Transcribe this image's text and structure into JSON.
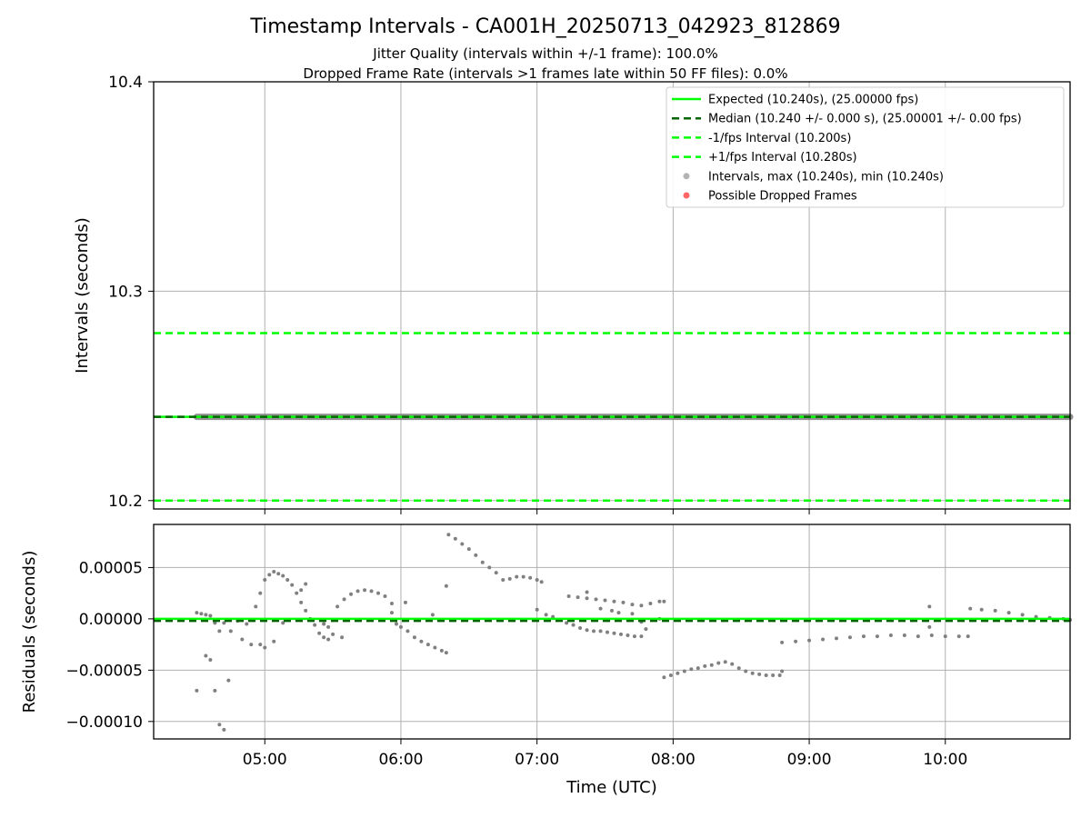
{
  "title": "Timestamp Intervals - CA001H_20250713_042923_812869",
  "subtitle_lines": [
    "Jitter Quality (intervals within +/-1 frame): 100.0%",
    "Dropped Frame Rate (intervals >1 frames late within 50 FF files): 0.0%"
  ],
  "colors": {
    "expected": "#00ff00",
    "median": "#006400",
    "bound": "#00ff00",
    "points": "#808080",
    "dropped": "#ff0000",
    "grid": "#b0b0b0"
  },
  "chart_data": [
    {
      "type": "scatter",
      "ylabel": "Intervals (seconds)",
      "ylim": [
        10.196,
        10.4
      ],
      "y_ticks": [
        10.2,
        10.3,
        10.4
      ],
      "y_tick_labels": [
        "10.2",
        "10.3",
        "10.4"
      ],
      "xlim": [
        "04:11",
        "10:55"
      ],
      "grid": true,
      "legend_position": "top-right",
      "legend": [
        {
          "label": "Expected (10.240s), (25.00000 fps)",
          "style": "solid-line",
          "color": "#00ff00"
        },
        {
          "label": "Median (10.240 +/- 0.000 s), (25.00001 +/- 0.00 fps)",
          "style": "dashed-line",
          "color": "#006400"
        },
        {
          "label": "-1/fps Interval (10.200s)",
          "style": "dashed-line",
          "color": "#00ff00"
        },
        {
          "label": "+1/fps Interval (10.280s)",
          "style": "dashed-line",
          "color": "#00ff00"
        },
        {
          "label": "Intervals, max (10.240s), min (10.240s)",
          "style": "marker",
          "color": "#808080"
        },
        {
          "label": "Possible Dropped Frames",
          "style": "marker",
          "color": "#ff0000"
        }
      ],
      "reference_lines": [
        {
          "name": "expected",
          "y": 10.24
        },
        {
          "name": "median",
          "y": 10.24
        },
        {
          "name": "minus_1_fps",
          "y": 10.2
        },
        {
          "name": "plus_1_fps",
          "y": 10.28
        }
      ],
      "interval_band": {
        "x_start": "04:30",
        "x_end": "10:55",
        "y": 10.24
      }
    },
    {
      "type": "scatter",
      "xlabel": "Time (UTC)",
      "ylabel": "Residuals (seconds)",
      "ylim": [
        -0.000117,
        9.2e-05
      ],
      "y_ticks": [
        5e-05,
        0.0,
        -5e-05,
        -0.0001
      ],
      "y_tick_labels": [
        "0.00005",
        "0.00000",
        "−0.00005",
        "−0.00010"
      ],
      "x_ticks": [
        "05:00",
        "06:00",
        "07:00",
        "08:00",
        "09:00",
        "10:00"
      ],
      "xlim": [
        "04:11",
        "10:55"
      ],
      "grid": true,
      "reference_lines": [
        {
          "name": "expected",
          "y": 0.0
        },
        {
          "name": "median",
          "y": -2e-06
        }
      ],
      "series": [
        {
          "points": [
            [
              "04:30",
              6e-06
            ],
            [
              "04:32",
              5e-06
            ],
            [
              "04:34",
              4e-06
            ],
            [
              "04:36",
              3e-06
            ],
            [
              "04:38",
              -4e-06
            ],
            [
              "04:40",
              -1.2e-05
            ],
            [
              "04:42",
              -4e-06
            ],
            [
              "04:45",
              -1.2e-05
            ],
            [
              "04:48",
              -2e-06
            ],
            [
              "04:50",
              -2e-05
            ],
            [
              "04:52",
              -5e-06
            ],
            [
              "04:54",
              -2.5e-05
            ],
            [
              "04:56",
              1.2e-05
            ],
            [
              "04:58",
              2.5e-05
            ],
            [
              "05:00",
              3.8e-05
            ],
            [
              "05:02",
              4.3e-05
            ],
            [
              "05:04",
              4.6e-05
            ],
            [
              "05:06",
              4.4e-05
            ],
            [
              "05:08",
              4.2e-05
            ],
            [
              "05:10",
              3.8e-05
            ],
            [
              "05:12",
              3.3e-05
            ],
            [
              "05:14",
              2.5e-05
            ],
            [
              "05:16",
              1.6e-05
            ],
            [
              "05:18",
              8e-06
            ],
            [
              "05:20",
              0.0
            ],
            [
              "05:22",
              -6e-06
            ],
            [
              "05:24",
              -1.4e-05
            ],
            [
              "05:26",
              -1.8e-05
            ],
            [
              "05:28",
              -2e-05
            ],
            [
              "05:30",
              -1.5e-05
            ],
            [
              "05:32",
              1.2e-05
            ],
            [
              "05:35",
              1.9e-05
            ],
            [
              "05:38",
              2.4e-05
            ],
            [
              "05:41",
              2.7e-05
            ],
            [
              "05:44",
              2.8e-05
            ],
            [
              "05:47",
              2.7e-05
            ],
            [
              "05:50",
              2.5e-05
            ],
            [
              "05:53",
              2.2e-05
            ],
            [
              "05:56",
              1.5e-05
            ],
            [
              "05:58",
              -5e-06
            ],
            [
              "06:00",
              -8e-06
            ],
            [
              "06:03",
              -1.2e-05
            ],
            [
              "06:06",
              -1.8e-05
            ],
            [
              "06:09",
              -2.2e-05
            ],
            [
              "06:12",
              -2.5e-05
            ],
            [
              "06:15",
              -2.8e-05
            ],
            [
              "06:18",
              -3.1e-05
            ],
            [
              "06:20",
              -3.3e-05
            ],
            [
              "06:21",
              8.2e-05
            ],
            [
              "06:24",
              7.8e-05
            ],
            [
              "06:27",
              7.3e-05
            ],
            [
              "06:30",
              6.8e-05
            ],
            [
              "06:33",
              6.2e-05
            ],
            [
              "06:36",
              5.5e-05
            ],
            [
              "06:39",
              5e-05
            ],
            [
              "06:42",
              4.5e-05
            ],
            [
              "06:45",
              3.8e-05
            ],
            [
              "06:48",
              3.9e-05
            ],
            [
              "06:51",
              4.1e-05
            ],
            [
              "06:54",
              4.1e-05
            ],
            [
              "06:57",
              4e-05
            ],
            [
              "07:00",
              3.8e-05
            ],
            [
              "07:02",
              3.6e-05
            ],
            [
              "07:04",
              4e-06
            ],
            [
              "07:07",
              2e-06
            ],
            [
              "07:10",
              -1e-06
            ],
            [
              "07:13",
              -4e-06
            ],
            [
              "07:16",
              -6e-06
            ],
            [
              "07:19",
              -9e-06
            ],
            [
              "07:22",
              -1.1e-05
            ],
            [
              "07:25",
              -1.2e-05
            ],
            [
              "07:28",
              -1.2e-05
            ],
            [
              "07:31",
              -1.3e-05
            ],
            [
              "07:34",
              -1.4e-05
            ],
            [
              "07:37",
              -1.5e-05
            ],
            [
              "07:40",
              -1.6e-05
            ],
            [
              "07:43",
              -1.7e-05
            ],
            [
              "07:46",
              -1.7e-05
            ],
            [
              "07:14",
              2.2e-05
            ],
            [
              "07:18",
              2.1e-05
            ],
            [
              "07:22",
              2e-05
            ],
            [
              "07:26",
              1.9e-05
            ],
            [
              "07:30",
              1.8e-05
            ],
            [
              "07:34",
              1.7e-05
            ],
            [
              "07:38",
              1.6e-05
            ],
            [
              "07:42",
              1.4e-05
            ],
            [
              "07:46",
              1.3e-05
            ],
            [
              "07:50",
              1.5e-05
            ],
            [
              "07:54",
              1.7e-05
            ],
            [
              "07:56",
              1.7e-05
            ],
            [
              "07:56",
              -5.7e-05
            ],
            [
              "07:59",
              -5.5e-05
            ],
            [
              "08:02",
              -5.3e-05
            ],
            [
              "08:05",
              -5.1e-05
            ],
            [
              "08:08",
              -4.9e-05
            ],
            [
              "08:11",
              -4.8e-05
            ],
            [
              "08:14",
              -4.6e-05
            ],
            [
              "08:17",
              -4.5e-05
            ],
            [
              "08:20",
              -4.3e-05
            ],
            [
              "08:23",
              -4.2e-05
            ],
            [
              "08:26",
              -4.4e-05
            ],
            [
              "08:29",
              -4.8e-05
            ],
            [
              "08:32",
              -5.1e-05
            ],
            [
              "08:35",
              -5.3e-05
            ],
            [
              "08:38",
              -5.4e-05
            ],
            [
              "08:41",
              -5.5e-05
            ],
            [
              "08:44",
              -5.5e-05
            ],
            [
              "08:47",
              -5.5e-05
            ],
            [
              "08:48",
              -5.1e-05
            ],
            [
              "08:48",
              -2.3e-05
            ],
            [
              "08:54",
              -2.2e-05
            ],
            [
              "09:00",
              -2.1e-05
            ],
            [
              "09:06",
              -2e-05
            ],
            [
              "09:12",
              -1.9e-05
            ],
            [
              "09:18",
              -1.8e-05
            ],
            [
              "09:24",
              -1.7e-05
            ],
            [
              "09:30",
              -1.7e-05
            ],
            [
              "09:36",
              -1.6e-05
            ],
            [
              "09:42",
              -1.6e-05
            ],
            [
              "09:48",
              -1.7e-05
            ],
            [
              "09:53",
              1.2e-05
            ],
            [
              "09:53",
              -8e-06
            ],
            [
              "09:54",
              -1.6e-05
            ],
            [
              "10:00",
              -1.7e-05
            ],
            [
              "10:06",
              -1.7e-05
            ],
            [
              "10:10",
              -1.7e-05
            ],
            [
              "10:11",
              1e-05
            ],
            [
              "10:16",
              9e-06
            ],
            [
              "10:22",
              8e-06
            ],
            [
              "10:28",
              6e-06
            ],
            [
              "10:34",
              4e-06
            ],
            [
              "10:40",
              2e-06
            ],
            [
              "10:46",
              1e-06
            ],
            [
              "10:52",
              0.0
            ],
            [
              "10:55",
              -1e-06
            ],
            [
              "04:30",
              -7e-05
            ],
            [
              "04:34",
              -3.6e-05
            ],
            [
              "04:36",
              -4e-05
            ],
            [
              "04:38",
              -7e-05
            ],
            [
              "04:40",
              -0.000103
            ],
            [
              "04:42",
              -0.000108
            ],
            [
              "04:44",
              -6e-05
            ],
            [
              "04:58",
              -2.5e-05
            ],
            [
              "05:00",
              -2.8e-05
            ],
            [
              "05:04",
              -2.2e-05
            ],
            [
              "05:08",
              -4e-06
            ],
            [
              "05:16",
              2.8e-05
            ],
            [
              "05:18",
              3.4e-05
            ],
            [
              "05:26",
              -5e-06
            ],
            [
              "05:28",
              -8e-06
            ],
            [
              "05:34",
              -1.8e-05
            ],
            [
              "05:56",
              6e-06
            ],
            [
              "06:02",
              1.6e-05
            ],
            [
              "06:14",
              4e-06
            ],
            [
              "06:20",
              3.2e-05
            ],
            [
              "07:00",
              9e-06
            ],
            [
              "07:22",
              2.6e-05
            ],
            [
              "07:28",
              1e-05
            ],
            [
              "07:33",
              8e-06
            ],
            [
              "07:36",
              6e-06
            ],
            [
              "07:42",
              5e-06
            ],
            [
              "07:46",
              -3e-06
            ],
            [
              "07:48",
              -1e-05
            ],
            [
              "07:54",
              0.0
            ]
          ]
        }
      ]
    }
  ]
}
